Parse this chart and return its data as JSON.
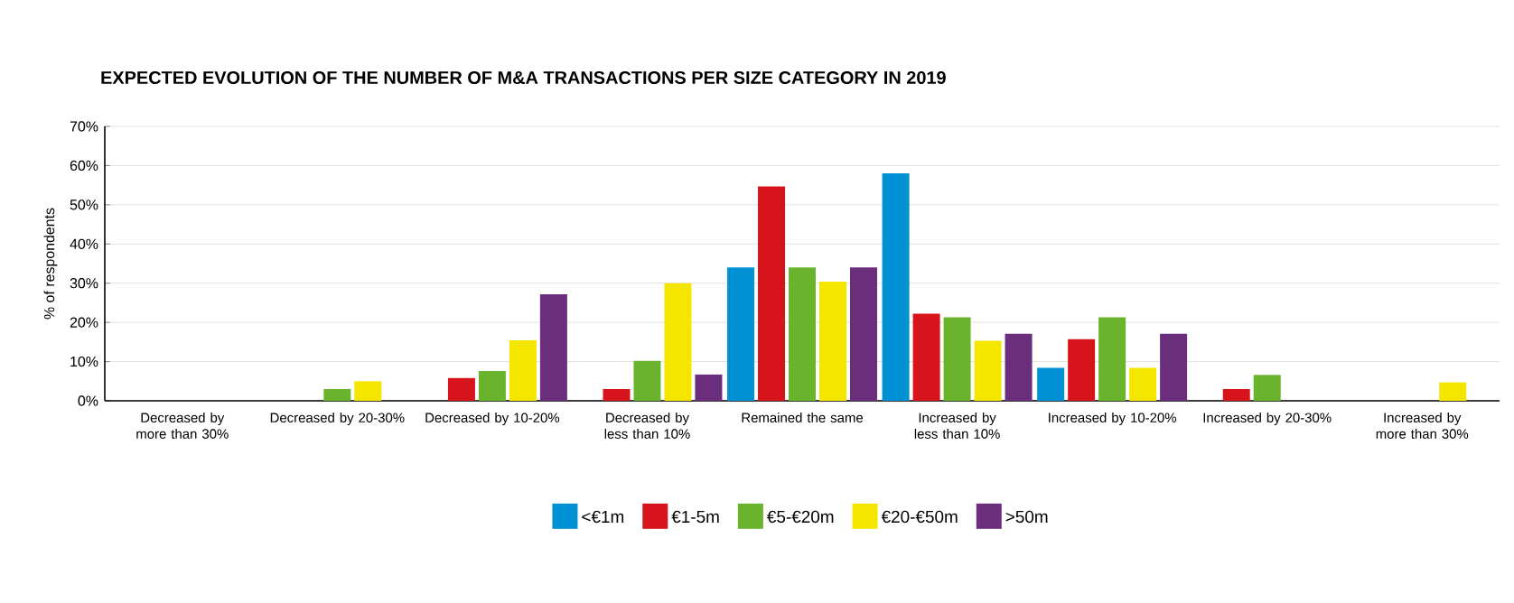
{
  "chart_data": {
    "type": "bar",
    "title": "EXPECTED EVOLUTION OF THE NUMBER OF M&A TRANSACTIONS PER SIZE CATEGORY IN 2019",
    "ylabel": "% of respondents",
    "categories": [
      "Decreased by more than 30%",
      "Decreased by 20-30%",
      "Decreased by 10-20%",
      "Decreased by less than 10%",
      "Remained the same",
      "Increased by less than 10%",
      "Increased by 10-20%",
      "Increased by 20-30%",
      "Increased by more than 30%"
    ],
    "series": [
      {
        "name": "<€1m",
        "color": "#0090d4",
        "values": [
          0,
          0,
          0,
          0,
          34,
          58,
          8.4,
          0,
          0
        ]
      },
      {
        "name": "€1-5m",
        "color": "#d7141c",
        "values": [
          0,
          0,
          5.8,
          3,
          54.7,
          22.2,
          15.7,
          3,
          0
        ]
      },
      {
        "name": "€5-€20m",
        "color": "#6ab42d",
        "values": [
          0,
          3,
          7.6,
          10.2,
          34,
          21.3,
          21.3,
          6.6,
          0
        ]
      },
      {
        "name": "€20-€50m",
        "color": "#f5e600",
        "values": [
          0,
          5,
          15.4,
          30,
          30.4,
          15.3,
          8.4,
          0,
          4.7
        ]
      },
      {
        "name": ">50m",
        "color": "#6a2e7c",
        "values": [
          0,
          0,
          27.2,
          6.7,
          34,
          17.1,
          17.1,
          0,
          0
        ]
      }
    ],
    "ylim": [
      0,
      70
    ],
    "yticks": [
      {
        "value": 0,
        "label": "0%"
      },
      {
        "value": 10,
        "label": "10%"
      },
      {
        "value": 20,
        "label": "20%"
      },
      {
        "value": 30,
        "label": "30%"
      },
      {
        "value": 40,
        "label": "40%"
      },
      {
        "value": 50,
        "label": "50%"
      },
      {
        "value": 60,
        "label": "60%"
      },
      {
        "value": 70,
        "label": "70%"
      }
    ],
    "grid": "y",
    "legend": "bottom"
  }
}
